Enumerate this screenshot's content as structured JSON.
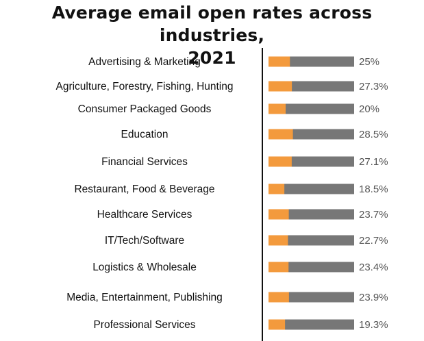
{
  "chart_data": {
    "type": "bar",
    "title_line1": "Average email open rates across industries,",
    "title_line2": "2021",
    "categories": [
      "Advertising & Marketing",
      "Agriculture, Forestry, Fishing, Hunting",
      "Consumer Packaged Goods",
      "Education",
      "Financial Services",
      "Restaurant, Food & Beverage",
      "Healthcare Services",
      "IT/Tech/Software",
      "Logistics & Wholesale",
      "Media, Entertainment, Publishing",
      "Professional Services"
    ],
    "values": [
      25,
      27.3,
      20,
      28.5,
      27.1,
      18.5,
      23.7,
      22.7,
      23.4,
      23.9,
      19.3
    ],
    "value_labels": [
      "25%",
      "27.3%",
      "20%",
      "28.5%",
      "27.1%",
      "18.5%",
      "23.7%",
      "22.7%",
      "23.4%",
      "23.9%",
      "19.3%"
    ],
    "unit": "%",
    "xlim": [
      0,
      100
    ],
    "xlabel": "",
    "ylabel": "",
    "colors": {
      "fill": "#f39a3d",
      "track": "#777777",
      "axis": "#111111"
    }
  }
}
